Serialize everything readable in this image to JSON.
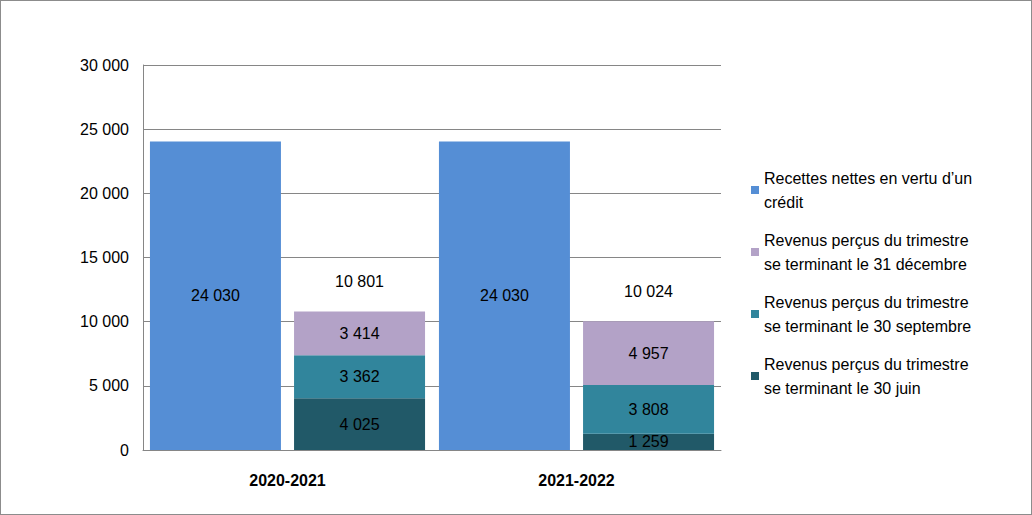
{
  "chart_data": {
    "type": "bar",
    "categories": [
      "2020-2021",
      "2021-2022"
    ],
    "series": [
      {
        "name": "Recettes nettes en vertu d’un crédit",
        "color": "#558ed5",
        "values": [
          24030,
          24030
        ],
        "value_labels": [
          "24 030",
          "24 030"
        ]
      },
      {
        "name": "Revenus perçus du trimestre se terminant le 30 juin",
        "color": "#215968",
        "values": [
          4025,
          1259
        ],
        "value_labels": [
          "4 025",
          "1 259"
        ],
        "stacked": true
      },
      {
        "name": "Revenus perçus du trimestre se terminant le 30 septembre",
        "color": "#31859c",
        "values": [
          3362,
          3808
        ],
        "value_labels": [
          "3 362",
          "3 808"
        ],
        "stacked": true
      },
      {
        "name": "Revenus perçus du trimestre se terminant le 31 décembre",
        "color": "#b3a2c7",
        "values": [
          3414,
          4957
        ],
        "value_labels": [
          "3 414",
          "4 957"
        ],
        "stacked": true
      }
    ],
    "totals": {
      "values": [
        10801,
        10024
      ],
      "value_labels": [
        "10 801",
        "10 024"
      ]
    },
    "ylim": [
      0,
      30000
    ],
    "yticks": [
      0,
      {
        "value": 5000,
        "label": "5 000"
      },
      {
        "value": 10000,
        "label": "10 000"
      },
      {
        "value": 15000,
        "label": "15 000"
      },
      {
        "value": 20000,
        "label": "20 000"
      },
      {
        "value": 25000,
        "label": "25 000"
      },
      {
        "value": 30000,
        "label": "30 000"
      }
    ],
    "grid": true,
    "legend": "right",
    "data_labels": true
  }
}
